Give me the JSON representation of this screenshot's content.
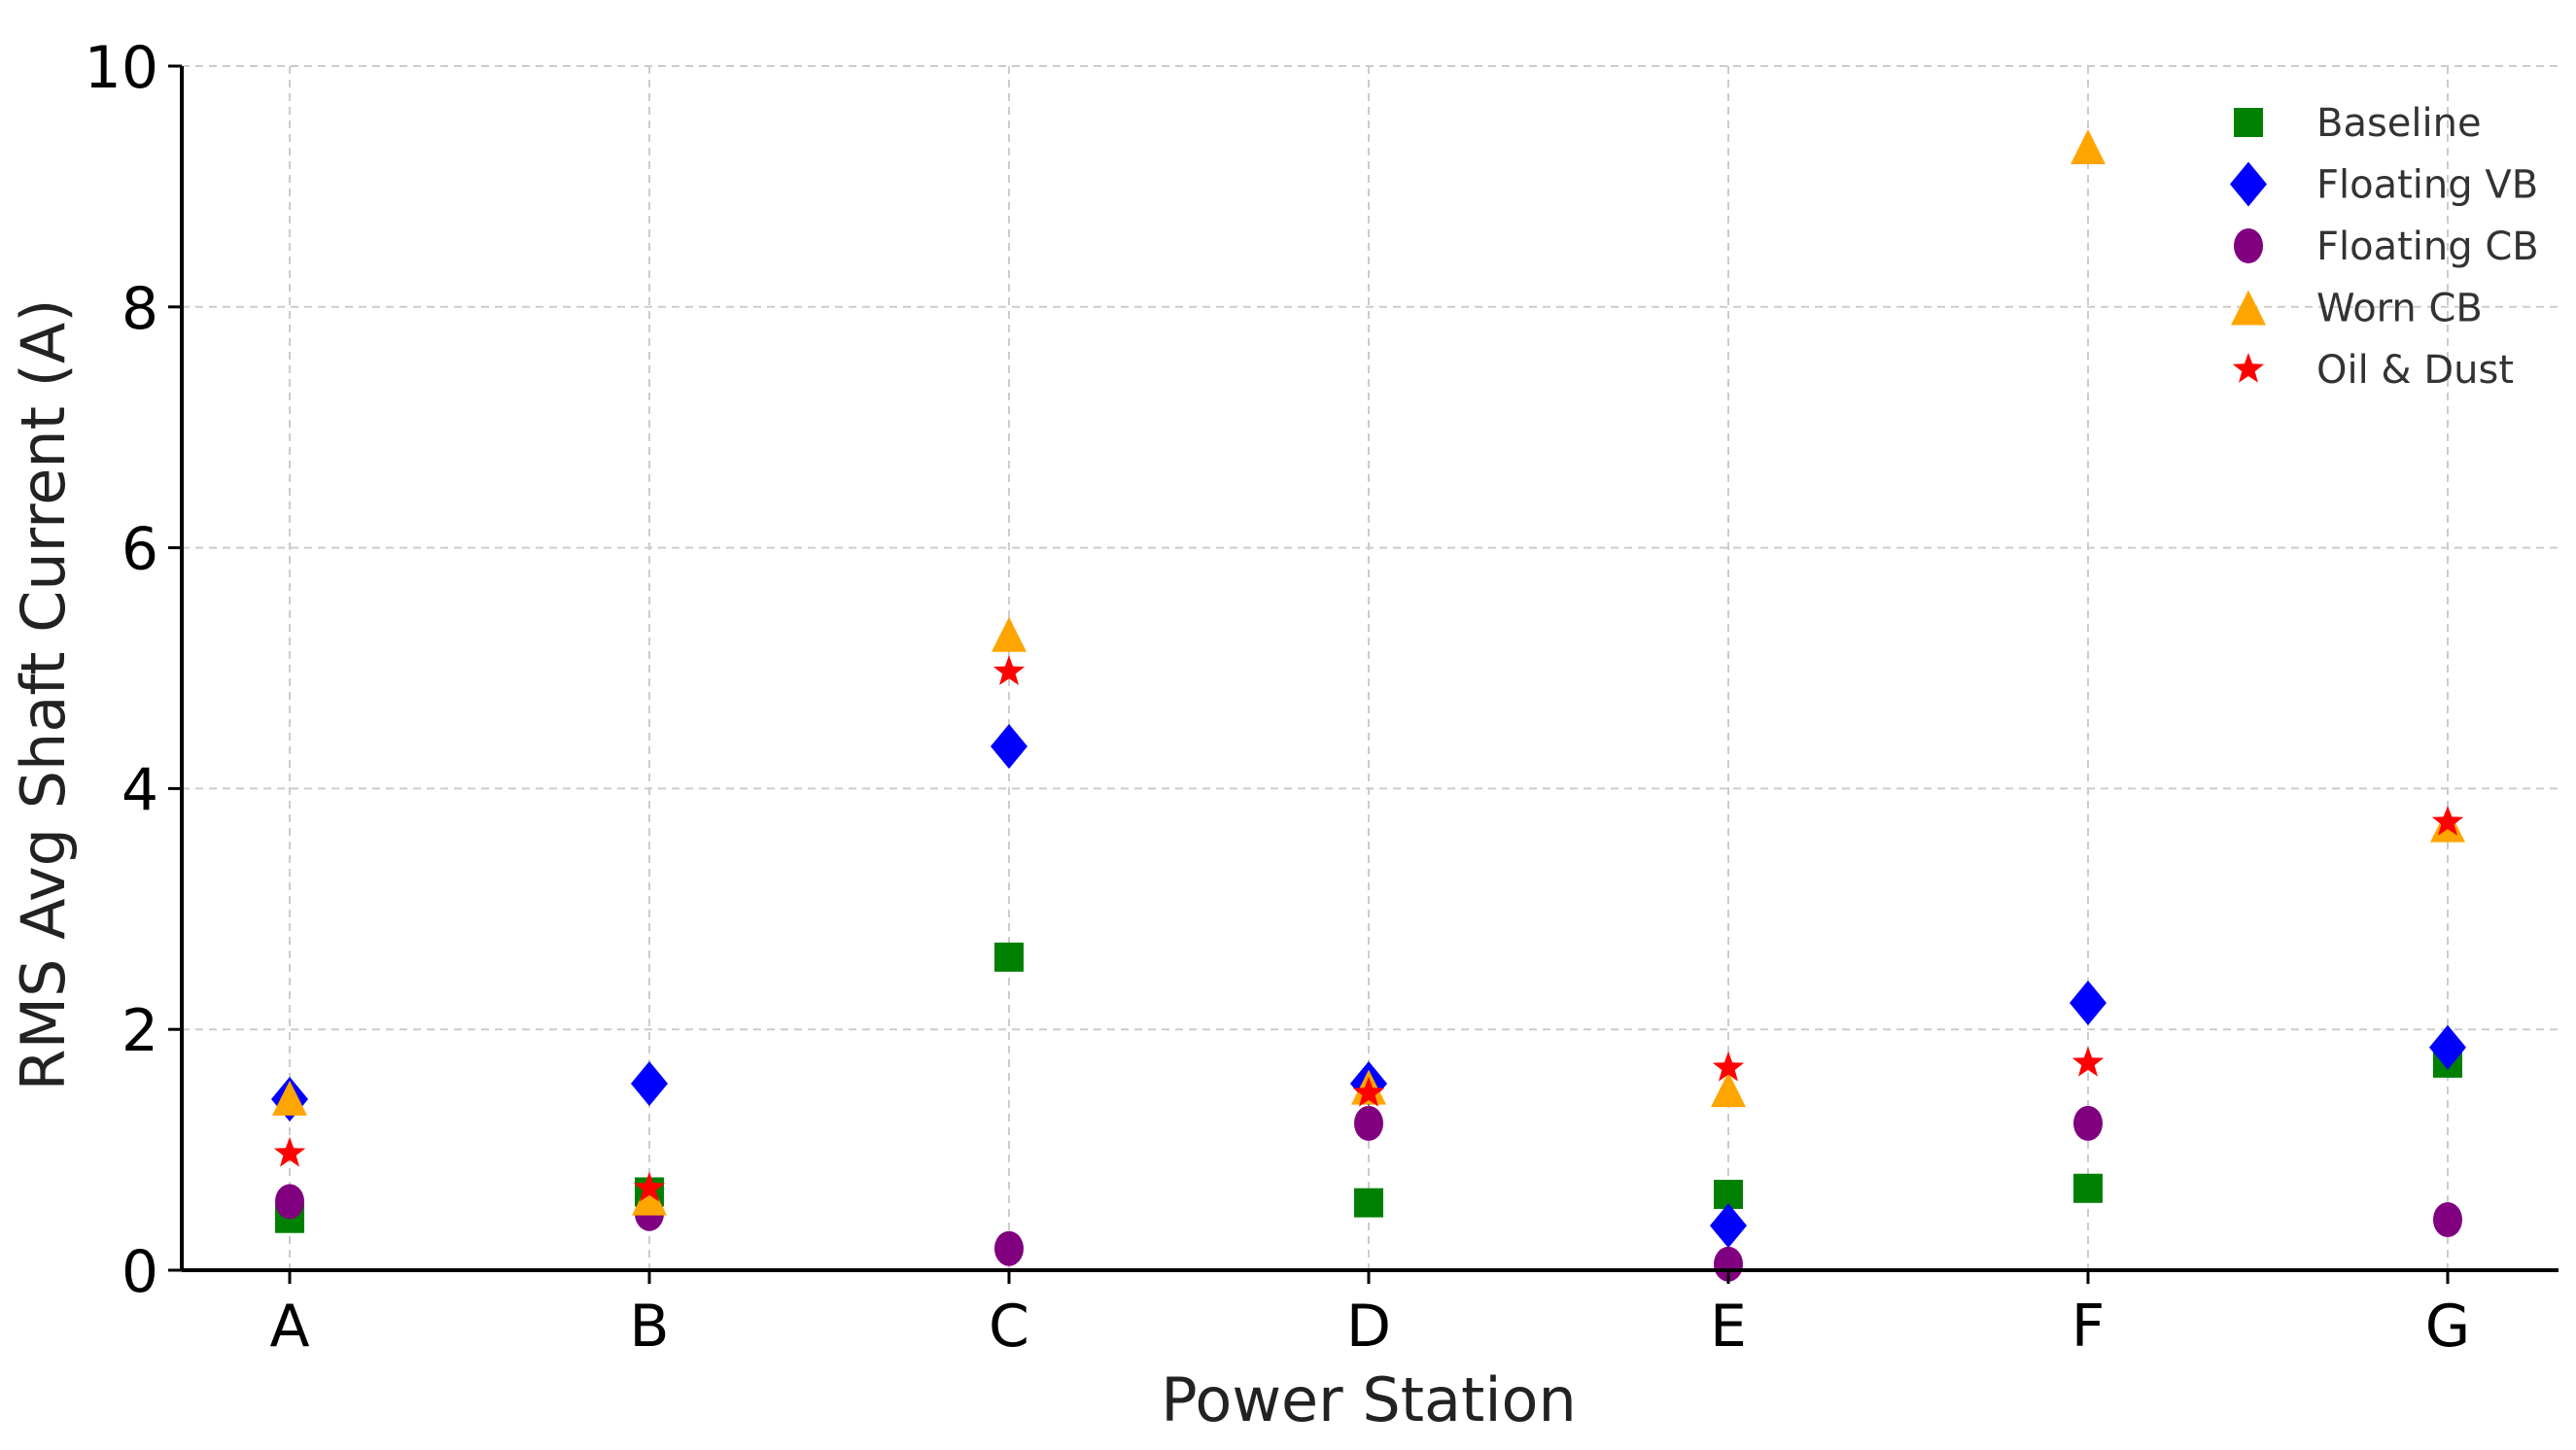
{
  "chart_data": {
    "type": "scatter",
    "xlabel": "Power Station",
    "ylabel": "RMS Avg Shaft Current (A)",
    "categories": [
      "A",
      "B",
      "C",
      "D",
      "E",
      "F",
      "G"
    ],
    "ylim": [
      0,
      10
    ],
    "yticks": [
      "0",
      "2",
      "4",
      "6",
      "8",
      "10"
    ],
    "grid": true,
    "legend_position": "top-right",
    "series": [
      {
        "name": "Baseline",
        "marker": "square",
        "color": "#008000",
        "values": [
          0.43,
          0.65,
          2.6,
          0.56,
          0.63,
          0.68,
          1.72
        ]
      },
      {
        "name": "Floating VB",
        "marker": "diamond",
        "color": "#0000ff",
        "values": [
          1.42,
          1.55,
          4.35,
          1.55,
          0.37,
          2.22,
          1.85
        ]
      },
      {
        "name": "Floating CB",
        "marker": "circle",
        "color": "#800080",
        "values": [
          0.57,
          0.47,
          0.18,
          1.22,
          0.05,
          1.22,
          0.42
        ]
      },
      {
        "name": "Worn CB",
        "marker": "triangle",
        "color": "#ffa500",
        "values": [
          1.43,
          0.6,
          5.28,
          1.52,
          1.5,
          9.33,
          3.7
        ]
      },
      {
        "name": "Oil & Dust",
        "marker": "star",
        "color": "#ff0000",
        "values": [
          0.97,
          0.68,
          4.97,
          1.47,
          1.68,
          1.72,
          3.72
        ]
      }
    ]
  }
}
